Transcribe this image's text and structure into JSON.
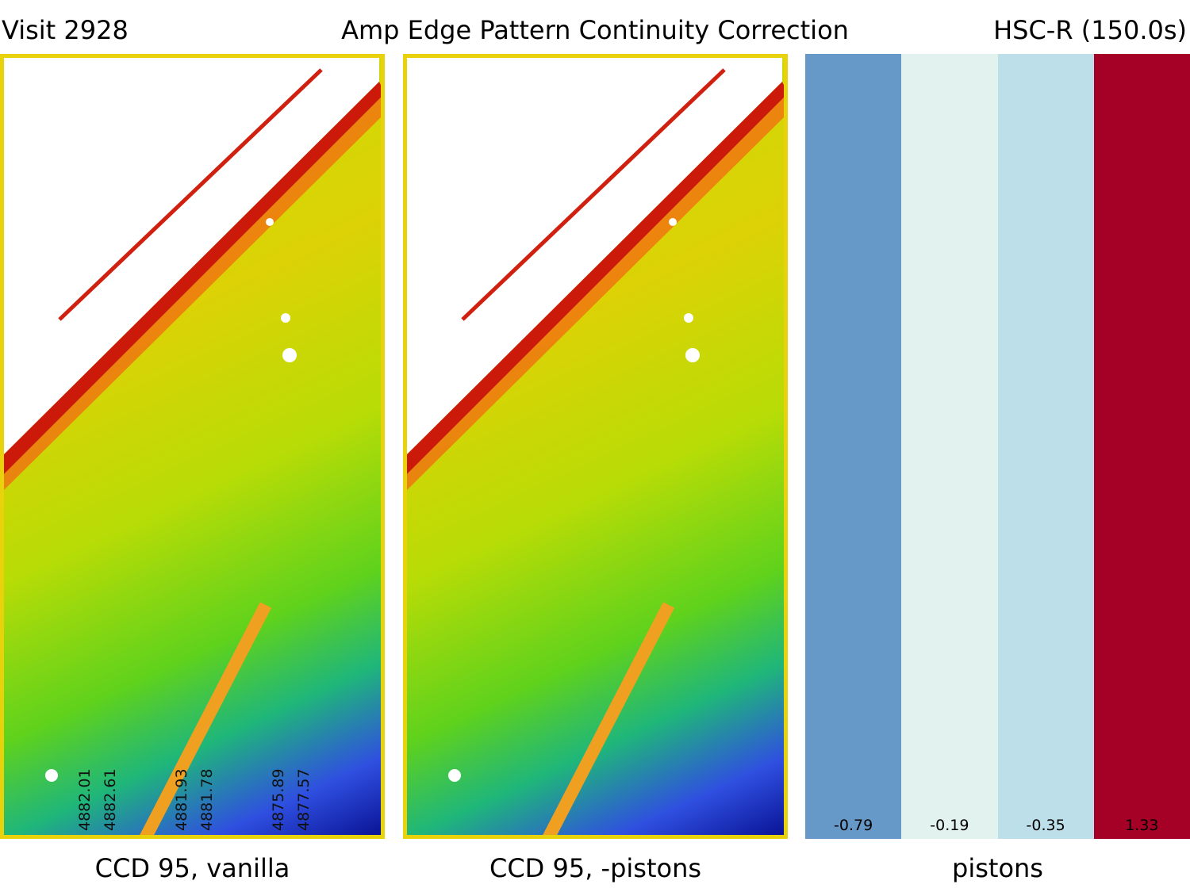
{
  "header": {
    "visit": "Visit 2928",
    "title": "Amp Edge Pattern Continuity Correction",
    "filter": "HSC-R (150.0s)"
  },
  "panels": {
    "vanilla": {
      "caption": "CCD 95, vanilla",
      "amp_labels": [
        "4882.01",
        "4882.61",
        "4881.93",
        "4881.78",
        "4875.89",
        "4877.57"
      ]
    },
    "corrected": {
      "caption": "CCD 95, -pistons"
    },
    "pistons": {
      "caption": "pistons",
      "values": [
        "-0.79",
        "-0.19",
        "-0.35",
        "1.33"
      ],
      "colors": [
        "#6699c7",
        "#e2f2ee",
        "#bcdfea",
        "#a50026"
      ]
    }
  }
}
